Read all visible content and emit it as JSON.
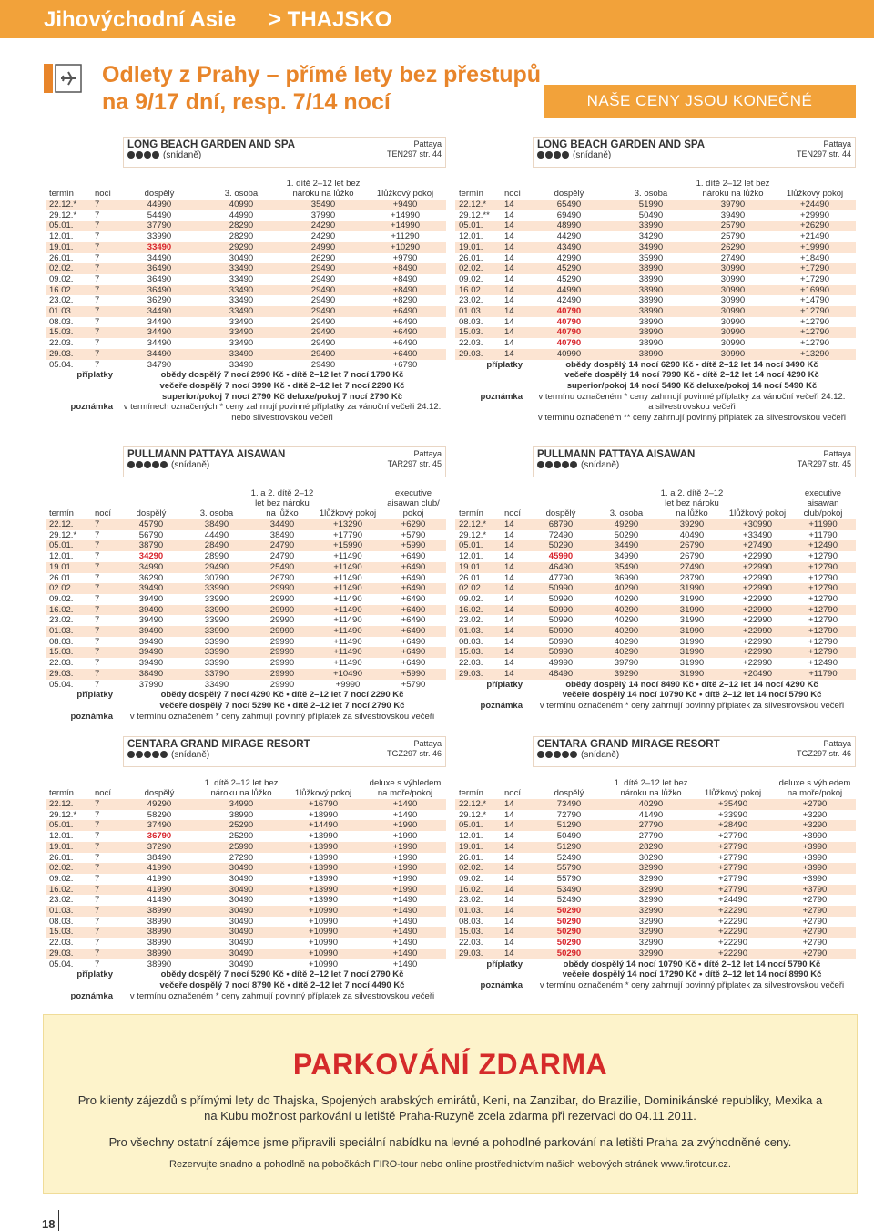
{
  "header": {
    "region": "Jihovýchodní Asie",
    "country": "> THAJSKO",
    "subtitle_lines": [
      "Odlety z Prahy – přímé lety bez přestupů",
      "na 9/17 dní, resp. 7/14 nocí"
    ],
    "badge": "NAŠE CENY JSOU KONEČNÉ"
  },
  "tables": [
    {
      "hotel": "LONG BEACH GARDEN AND SPA",
      "stars": 4,
      "board": "(snídaně)",
      "location": "Pattaya",
      "code": "TEN297 str. 44",
      "headers": [
        "termín",
        "nocí",
        "dospělý",
        "3. osoba",
        "1. dítě 2–12 let bez nároku na lůžko",
        "1lůžkový pokoj"
      ],
      "highlight_rows": [
        4
      ],
      "rows": [
        [
          "22.12.*",
          "7",
          "44990",
          "40990",
          "35490",
          "+9490"
        ],
        [
          "29.12.*",
          "7",
          "54490",
          "44990",
          "37990",
          "+14990"
        ],
        [
          "05.01.",
          "7",
          "37790",
          "28290",
          "24290",
          "+14990"
        ],
        [
          "12.01.",
          "7",
          "33990",
          "28290",
          "24290",
          "+11290"
        ],
        [
          "19.01.",
          "7",
          "33490",
          "29290",
          "24990",
          "+10290"
        ],
        [
          "26.01.",
          "7",
          "34490",
          "30490",
          "26290",
          "+9790"
        ],
        [
          "02.02.",
          "7",
          "36490",
          "33490",
          "29490",
          "+8490"
        ],
        [
          "09.02.",
          "7",
          "36490",
          "33490",
          "29490",
          "+8490"
        ],
        [
          "16.02.",
          "7",
          "36490",
          "33490",
          "29490",
          "+8490"
        ],
        [
          "23.02.",
          "7",
          "36290",
          "33490",
          "29490",
          "+8290"
        ],
        [
          "01.03.",
          "7",
          "34490",
          "33490",
          "29490",
          "+6490"
        ],
        [
          "08.03.",
          "7",
          "34490",
          "33490",
          "29490",
          "+6490"
        ],
        [
          "15.03.",
          "7",
          "34490",
          "33490",
          "29490",
          "+6490"
        ],
        [
          "22.03.",
          "7",
          "34490",
          "33490",
          "29490",
          "+6490"
        ],
        [
          "29.03.",
          "7",
          "34490",
          "33490",
          "29490",
          "+6490"
        ],
        [
          "05.04.",
          "7",
          "34790",
          "33490",
          "29490",
          "+6790"
        ]
      ],
      "supplements": {
        "label": "příplatky",
        "lines": [
          "obědy dospělý 7 nocí 2990 Kč • dítě 2–12 let 7 nocí 1790 Kč",
          "večeře dospělý 7 nocí 3990 Kč • dítě 2–12 let 7 nocí 2290 Kč",
          "superior/pokoj 7 nocí 2790 Kč deluxe/pokoj 7 nocí 2790 Kč"
        ]
      },
      "note": {
        "label": "poznámka",
        "lines": [
          "v termínech označených * ceny zahrnují povinné příplatky za vánoční večeři 24.12.",
          "nebo silvestrovskou večeři"
        ]
      }
    },
    {
      "hotel": "LONG BEACH GARDEN AND SPA",
      "stars": 4,
      "board": "(snídaně)",
      "location": "Pattaya",
      "code": "TEN297 str. 44",
      "headers": [
        "termín",
        "nocí",
        "dospělý",
        "3. osoba",
        "1. dítě 2–12 let bez nároku na lůžko",
        "1lůžkový pokoj"
      ],
      "highlight_rows": [
        10,
        11,
        12,
        13
      ],
      "rows": [
        [
          "22.12.*",
          "14",
          "65490",
          "51990",
          "39790",
          "+24490"
        ],
        [
          "29.12.**",
          "14",
          "69490",
          "50490",
          "39490",
          "+29990"
        ],
        [
          "05.01.",
          "14",
          "48990",
          "33990",
          "25790",
          "+26290"
        ],
        [
          "12.01.",
          "14",
          "44290",
          "34290",
          "25790",
          "+21490"
        ],
        [
          "19.01.",
          "14",
          "43490",
          "34990",
          "26290",
          "+19990"
        ],
        [
          "26.01.",
          "14",
          "42990",
          "35990",
          "27490",
          "+18490"
        ],
        [
          "02.02.",
          "14",
          "45290",
          "38990",
          "30990",
          "+17290"
        ],
        [
          "09.02.",
          "14",
          "45290",
          "38990",
          "30990",
          "+17290"
        ],
        [
          "16.02.",
          "14",
          "44990",
          "38990",
          "30990",
          "+16990"
        ],
        [
          "23.02.",
          "14",
          "42490",
          "38990",
          "30990",
          "+14790"
        ],
        [
          "01.03.",
          "14",
          "40790",
          "38990",
          "30990",
          "+12790"
        ],
        [
          "08.03.",
          "14",
          "40790",
          "38990",
          "30990",
          "+12790"
        ],
        [
          "15.03.",
          "14",
          "40790",
          "38990",
          "30990",
          "+12790"
        ],
        [
          "22.03.",
          "14",
          "40790",
          "38990",
          "30990",
          "+12790"
        ],
        [
          "29.03.",
          "14",
          "40990",
          "38990",
          "30990",
          "+13290"
        ]
      ],
      "supplements": {
        "label": "příplatky",
        "lines": [
          "obědy dospělý 14 nocí 6290 Kč • dítě 2–12 let 14 nocí 3490 Kč",
          "večeře dospělý 14 nocí 7990 Kč • dítě 2–12 let 14 nocí 4290 Kč",
          "superior/pokoj 14 nocí 5490 Kč deluxe/pokoj 14 nocí 5490 Kč"
        ]
      },
      "note": {
        "label": "poznámka",
        "lines": [
          "v termínu označeném * ceny zahrnují povinné příplatky za vánoční večeři 24.12.",
          "a silvestrovskou večeři",
          "v termínu označeném ** ceny zahrnují povinný příplatek za silvestrovskou večeři"
        ]
      }
    },
    {
      "hotel": "PULLMANN PATTAYA AISAWAN",
      "stars": 5,
      "board": "(snídaně)",
      "location": "Pattaya",
      "code": "TAR297 str. 45",
      "headers": [
        "termín",
        "nocí",
        "dospělý",
        "3. osoba",
        "1. a 2. dítě 2–12 let bez nároku na lůžko",
        "1lůžkový pokoj",
        "executive aisawan club/ pokoj"
      ],
      "highlight_rows": [
        3
      ],
      "rows": [
        [
          "22.12.",
          "7",
          "45790",
          "38490",
          "34490",
          "+13290",
          "+6290"
        ],
        [
          "29.12.*",
          "7",
          "56790",
          "44490",
          "38490",
          "+17790",
          "+5790"
        ],
        [
          "05.01.",
          "7",
          "38790",
          "28490",
          "24790",
          "+15990",
          "+5990"
        ],
        [
          "12.01.",
          "7",
          "34290",
          "28990",
          "24790",
          "+11490",
          "+6490"
        ],
        [
          "19.01.",
          "7",
          "34990",
          "29490",
          "25490",
          "+11490",
          "+6490"
        ],
        [
          "26.01.",
          "7",
          "36290",
          "30790",
          "26790",
          "+11490",
          "+6490"
        ],
        [
          "02.02.",
          "7",
          "39490",
          "33990",
          "29990",
          "+11490",
          "+6490"
        ],
        [
          "09.02.",
          "7",
          "39490",
          "33990",
          "29990",
          "+11490",
          "+6490"
        ],
        [
          "16.02.",
          "7",
          "39490",
          "33990",
          "29990",
          "+11490",
          "+6490"
        ],
        [
          "23.02.",
          "7",
          "39490",
          "33990",
          "29990",
          "+11490",
          "+6490"
        ],
        [
          "01.03.",
          "7",
          "39490",
          "33990",
          "29990",
          "+11490",
          "+6490"
        ],
        [
          "08.03.",
          "7",
          "39490",
          "33990",
          "29990",
          "+11490",
          "+6490"
        ],
        [
          "15.03.",
          "7",
          "39490",
          "33990",
          "29990",
          "+11490",
          "+6490"
        ],
        [
          "22.03.",
          "7",
          "39490",
          "33990",
          "29990",
          "+11490",
          "+6490"
        ],
        [
          "29.03.",
          "7",
          "38490",
          "33790",
          "29990",
          "+10490",
          "+5990"
        ],
        [
          "05.04.",
          "7",
          "37990",
          "33490",
          "29990",
          "+9990",
          "+5790"
        ]
      ],
      "supplements": {
        "label": "příplatky",
        "lines": [
          "obědy dospělý 7 nocí 4290 Kč • dítě 2–12 let 7 nocí 2290 Kč",
          "večeře dospělý 7 nocí 5290 Kč • dítě 2–12 let 7 nocí 2790 Kč"
        ]
      },
      "note": {
        "label": "poznámka",
        "lines": [
          "v termínu označeném * ceny zahrnují povinný příplatek za silvestrovskou večeři"
        ]
      }
    },
    {
      "hotel": "PULLMANN PATTAYA AISAWAN",
      "stars": 5,
      "board": "(snídaně)",
      "location": "Pattaya",
      "code": "TAR297 str. 45",
      "headers": [
        "termín",
        "nocí",
        "dospělý",
        "3. osoba",
        "1. a 2. dítě 2–12 let bez nároku na lůžko",
        "1lůžkový pokoj",
        "executive aisawan club/pokoj"
      ],
      "highlight_rows": [
        3
      ],
      "rows": [
        [
          "22.12.*",
          "14",
          "68790",
          "49290",
          "39290",
          "+30990",
          "+11990"
        ],
        [
          "29.12.*",
          "14",
          "72490",
          "50290",
          "40490",
          "+33490",
          "+11790"
        ],
        [
          "05.01.",
          "14",
          "50290",
          "34490",
          "26790",
          "+27490",
          "+12490"
        ],
        [
          "12.01.",
          "14",
          "45990",
          "34990",
          "26790",
          "+22990",
          "+12790"
        ],
        [
          "19.01.",
          "14",
          "46490",
          "35490",
          "27490",
          "+22990",
          "+12790"
        ],
        [
          "26.01.",
          "14",
          "47790",
          "36990",
          "28790",
          "+22990",
          "+12790"
        ],
        [
          "02.02.",
          "14",
          "50990",
          "40290",
          "31990",
          "+22990",
          "+12790"
        ],
        [
          "09.02.",
          "14",
          "50990",
          "40290",
          "31990",
          "+22990",
          "+12790"
        ],
        [
          "16.02.",
          "14",
          "50990",
          "40290",
          "31990",
          "+22990",
          "+12790"
        ],
        [
          "23.02.",
          "14",
          "50990",
          "40290",
          "31990",
          "+22990",
          "+12790"
        ],
        [
          "01.03.",
          "14",
          "50990",
          "40290",
          "31990",
          "+22990",
          "+12790"
        ],
        [
          "08.03.",
          "14",
          "50990",
          "40290",
          "31990",
          "+22990",
          "+12790"
        ],
        [
          "15.03.",
          "14",
          "50990",
          "40290",
          "31990",
          "+22990",
          "+12790"
        ],
        [
          "22.03.",
          "14",
          "49990",
          "39790",
          "31990",
          "+22990",
          "+12490"
        ],
        [
          "29.03.",
          "14",
          "48490",
          "39290",
          "31990",
          "+20490",
          "+11790"
        ]
      ],
      "supplements": {
        "label": "příplatky",
        "lines": [
          "obědy dospělý 14 nocí 8490 Kč • dítě 2–12 let 14 nocí 4290 Kč",
          "večeře dospělý 14 nocí 10790 Kč • dítě 2–12 let 14 nocí 5790 Kč"
        ]
      },
      "note": {
        "label": "poznámka",
        "lines": [
          "v termínu označeném * ceny zahrnují povinný příplatek za silvestrovskou večeři"
        ]
      }
    },
    {
      "hotel": "CENTARA GRAND MIRAGE RESORT",
      "stars": 5,
      "board": "(snídaně)",
      "location": "Pattaya",
      "code": "TGZ297 str. 46",
      "headers": [
        "termín",
        "nocí",
        "dospělý",
        "1. dítě 2–12 let bez nároku na lůžko",
        "1lůžkový pokoj",
        "deluxe s výhledem na moře/pokoj"
      ],
      "highlight_rows": [
        3
      ],
      "rows": [
        [
          "22.12.",
          "7",
          "49290",
          "34990",
          "+16790",
          "+1490"
        ],
        [
          "29.12.*",
          "7",
          "58290",
          "38990",
          "+18990",
          "+1490"
        ],
        [
          "05.01.",
          "7",
          "37490",
          "25290",
          "+14490",
          "+1990"
        ],
        [
          "12.01.",
          "7",
          "36790",
          "25290",
          "+13990",
          "+1990"
        ],
        [
          "19.01.",
          "7",
          "37290",
          "25990",
          "+13990",
          "+1990"
        ],
        [
          "26.01.",
          "7",
          "38490",
          "27290",
          "+13990",
          "+1990"
        ],
        [
          "02.02.",
          "7",
          "41990",
          "30490",
          "+13990",
          "+1990"
        ],
        [
          "09.02.",
          "7",
          "41990",
          "30490",
          "+13990",
          "+1990"
        ],
        [
          "16.02.",
          "7",
          "41990",
          "30490",
          "+13990",
          "+1990"
        ],
        [
          "23.02.",
          "7",
          "41490",
          "30490",
          "+13990",
          "+1490"
        ],
        [
          "01.03.",
          "7",
          "38990",
          "30490",
          "+10990",
          "+1490"
        ],
        [
          "08.03.",
          "7",
          "38990",
          "30490",
          "+10990",
          "+1490"
        ],
        [
          "15.03.",
          "7",
          "38990",
          "30490",
          "+10990",
          "+1490"
        ],
        [
          "22.03.",
          "7",
          "38990",
          "30490",
          "+10990",
          "+1490"
        ],
        [
          "29.03.",
          "7",
          "38990",
          "30490",
          "+10990",
          "+1490"
        ],
        [
          "05.04.",
          "7",
          "38990",
          "30490",
          "+10990",
          "+1490"
        ]
      ],
      "supplements": {
        "label": "příplatky",
        "lines": [
          "obědy dospělý 7 nocí 5290 Kč • dítě 2–12 let 7 nocí 2790 Kč",
          "večeře dospělý 7 nocí 8790 Kč • dítě 2–12 let 7 nocí 4490 Kč"
        ]
      },
      "note": {
        "label": "poznámka",
        "lines": [
          "v termínu označeném * ceny zahrnují povinný příplatek za silvestrovskou večeři"
        ]
      }
    },
    {
      "hotel": "CENTARA GRAND MIRAGE RESORT",
      "stars": 5,
      "board": "(snídaně)",
      "location": "Pattaya",
      "code": "TGZ297 str. 46",
      "headers": [
        "termín",
        "nocí",
        "dospělý",
        "1. dítě 2–12 let bez nároku na lůžko",
        "1lůžkový pokoj",
        "deluxe s výhledem na moře/pokoj"
      ],
      "highlight_rows": [
        10,
        11,
        12,
        13,
        14
      ],
      "rows": [
        [
          "22.12.*",
          "14",
          "73490",
          "40290",
          "+35490",
          "+2790"
        ],
        [
          "29.12.*",
          "14",
          "72790",
          "41490",
          "+33990",
          "+3290"
        ],
        [
          "05.01.",
          "14",
          "51290",
          "27790",
          "+28490",
          "+3290"
        ],
        [
          "12.01.",
          "14",
          "50490",
          "27790",
          "+27790",
          "+3990"
        ],
        [
          "19.01.",
          "14",
          "51290",
          "28290",
          "+27790",
          "+3990"
        ],
        [
          "26.01.",
          "14",
          "52490",
          "30290",
          "+27790",
          "+3990"
        ],
        [
          "02.02.",
          "14",
          "55790",
          "32990",
          "+27790",
          "+3990"
        ],
        [
          "09.02.",
          "14",
          "55790",
          "32990",
          "+27790",
          "+3990"
        ],
        [
          "16.02.",
          "14",
          "53490",
          "32990",
          "+27790",
          "+3790"
        ],
        [
          "23.02.",
          "14",
          "52490",
          "32990",
          "+24490",
          "+2790"
        ],
        [
          "01.03.",
          "14",
          "50290",
          "32990",
          "+22290",
          "+2790"
        ],
        [
          "08.03.",
          "14",
          "50290",
          "32990",
          "+22290",
          "+2790"
        ],
        [
          "15.03.",
          "14",
          "50290",
          "32990",
          "+22290",
          "+2790"
        ],
        [
          "22.03.",
          "14",
          "50290",
          "32990",
          "+22290",
          "+2790"
        ],
        [
          "29.03.",
          "14",
          "50290",
          "32990",
          "+22290",
          "+2790"
        ]
      ],
      "supplements": {
        "label": "příplatky",
        "lines": [
          "obědy dospělý 14 nocí 10790 Kč • dítě 2–12 let 14 nocí 5790 Kč",
          "večeře dospělý 14 nocí 17290 Kč • dítě 2–12 let 14 nocí 8990 Kč"
        ]
      },
      "note": {
        "label": "poznámka",
        "lines": [
          "v termínu označeném * ceny zahrnují povinný příplatek za silvestrovskou večeři"
        ]
      }
    }
  ],
  "parking": {
    "title": "PARKOVÁNÍ ZDARMA",
    "paragraphs": [
      "Pro klienty zájezdů s přímými lety do Thajska, Spojených arabských emirátů, Keni, na Zanzibar, do Brazílie, Dominikánské republiky, Mexika a na Kubu možnost parkování u letiště Praha-Ruzyně zcela zdarma při rezervaci do 04.11.2011.",
      "Pro všechny ostatní zájemce jsme připravili speciální nabídku na levné a pohodlné parkování na letišti Praha za zvýhodněné ceny."
    ],
    "small": "Rezervujte snadno a pohodlně na pobočkách FIRO-tour nebo online prostřednictvím našich webových stránek www.firotour.cz."
  },
  "page_number": "18"
}
